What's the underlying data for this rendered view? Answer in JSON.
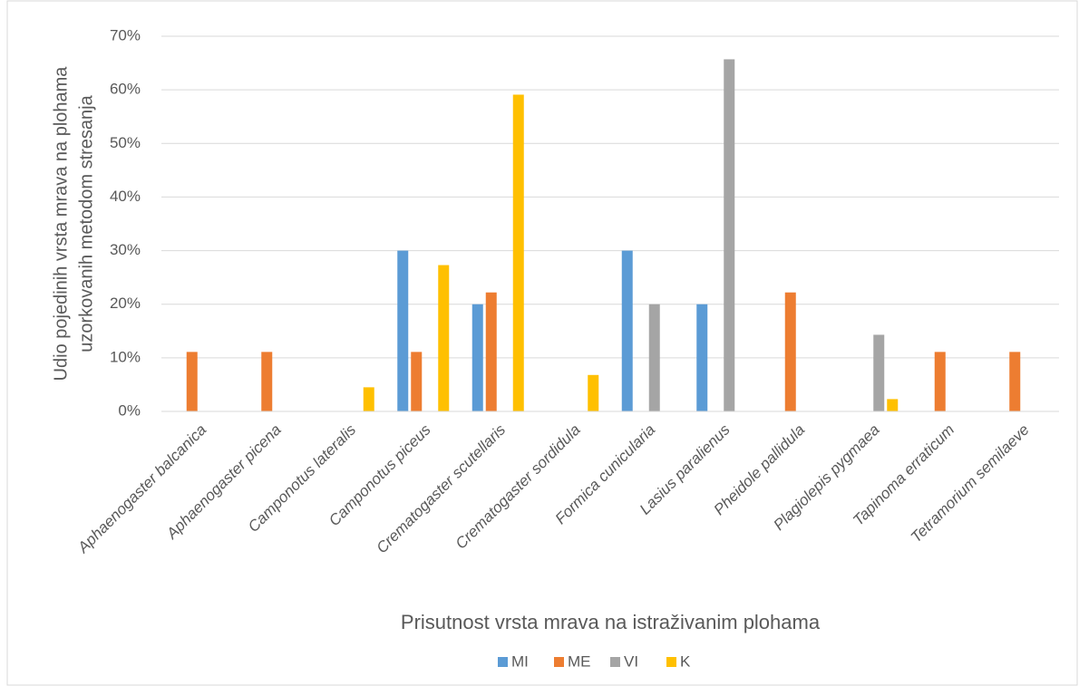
{
  "chart_data": {
    "type": "bar",
    "ylabel": [
      "Udio pojedinih vrsta mrava na plohama",
      "uzorkovanih metodom stresanja"
    ],
    "xlabel": "Prisutnost vrsta mrava na istraživanim plohama",
    "categories": [
      "Aphaenogaster balcanica",
      "Aphaenogaster picena",
      "Camponotus lateralis",
      "Camponotus piceus",
      "Crematogaster scutellaris",
      "Crematogaster sordidula",
      "Formica cunicularia",
      "Lasius paralienus",
      "Pheidole pallidula",
      "Plagiolepis pygmaea",
      "Tapinoma erraticum",
      "Tetramorium semilaeve"
    ],
    "series": [
      {
        "name": "MI",
        "color": "#5b9bd5",
        "values": [
          0,
          0,
          0,
          30,
          20,
          0,
          30,
          20,
          0,
          0,
          0,
          0
        ]
      },
      {
        "name": "ME",
        "color": "#ed7d31",
        "values": [
          11.1,
          11.1,
          0,
          11.1,
          22.2,
          0,
          0,
          0,
          22.2,
          0,
          11.1,
          11.1
        ]
      },
      {
        "name": "VI",
        "color": "#a5a5a5",
        "values": [
          0,
          0,
          0,
          0,
          0,
          0,
          20,
          65.7,
          0,
          14.3,
          0,
          0
        ]
      },
      {
        "name": "K",
        "color": "#ffc000",
        "values": [
          0,
          0,
          4.5,
          27.3,
          59.1,
          6.8,
          0,
          0,
          0,
          2.3,
          0,
          0
        ]
      }
    ],
    "ylim": [
      0,
      70
    ],
    "yticks": [
      {
        "value": 0,
        "label": "0%"
      },
      {
        "value": 10,
        "label": "10%"
      },
      {
        "value": 20,
        "label": "20%"
      },
      {
        "value": 30,
        "label": "30%"
      },
      {
        "value": 40,
        "label": "40%"
      },
      {
        "value": 50,
        "label": "50%"
      },
      {
        "value": 60,
        "label": "60%"
      },
      {
        "value": 70,
        "label": "70%"
      }
    ],
    "grid": true,
    "legend": "bottom"
  }
}
